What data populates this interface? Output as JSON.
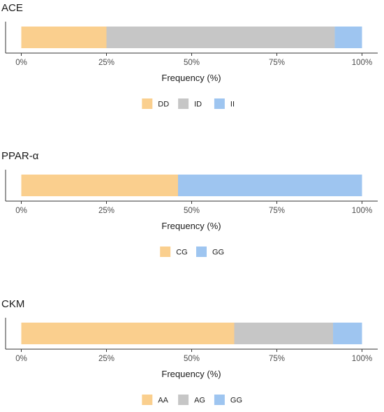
{
  "colors": {
    "orange": "#FACF8E",
    "gray": "#C6C6C6",
    "blue": "#9EC5F0"
  },
  "chart_data": [
    {
      "type": "bar",
      "orientation": "horizontal-stacked-100",
      "title": "ACE",
      "xlabel": "Frequency (%)",
      "xlim": [
        0,
        100
      ],
      "tick_labels": [
        "0%",
        "25%",
        "50%",
        "75%",
        "100%"
      ],
      "legend_position": "bottom",
      "series": [
        {
          "name": "DD",
          "value": 25,
          "color": "#FACF8E"
        },
        {
          "name": "ID",
          "value": 67,
          "color": "#C6C6C6"
        },
        {
          "name": "II",
          "value": 8,
          "color": "#9EC5F0"
        }
      ]
    },
    {
      "type": "bar",
      "orientation": "horizontal-stacked-100",
      "title": "PPAR-α",
      "xlabel": "Frequency (%)",
      "xlim": [
        0,
        100
      ],
      "tick_labels": [
        "0%",
        "25%",
        "50%",
        "75%",
        "100%"
      ],
      "legend_position": "bottom",
      "series": [
        {
          "name": "CG",
          "value": 46,
          "color": "#FACF8E"
        },
        {
          "name": "GG",
          "value": 54,
          "color": "#9EC5F0"
        }
      ]
    },
    {
      "type": "bar",
      "orientation": "horizontal-stacked-100",
      "title": "CKM",
      "xlabel": "Frequency (%)",
      "xlim": [
        0,
        100
      ],
      "tick_labels": [
        "0%",
        "25%",
        "50%",
        "75%",
        "100%"
      ],
      "legend_position": "bottom",
      "series": [
        {
          "name": "AA",
          "value": 62.5,
          "color": "#FACF8E"
        },
        {
          "name": "AG",
          "value": 29,
          "color": "#C6C6C6"
        },
        {
          "name": "GG",
          "value": 8.5,
          "color": "#9EC5F0"
        }
      ]
    }
  ]
}
